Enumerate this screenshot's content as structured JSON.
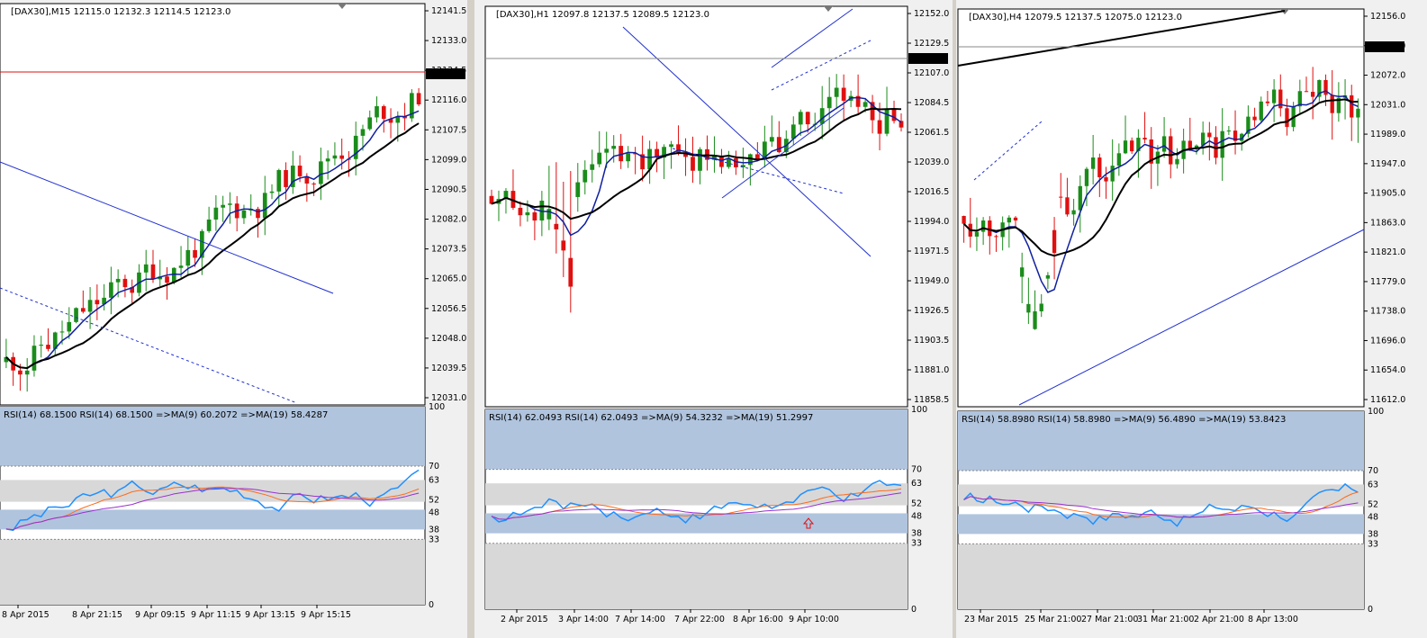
{
  "charts": [
    {
      "info": "[DAX30],M15  12115.0 12132.3 12114.5 12123.0",
      "price_label": "12123.0",
      "y_labels": [
        "12141.5",
        "12133.0",
        "12124.5",
        "12116.0",
        "12107.5",
        "12099.0",
        "12090.5",
        "12082.0",
        "12073.5",
        "12065.0",
        "12056.5",
        "12048.0",
        "12039.5",
        "12031.0"
      ],
      "rsi_info": "RSI(14) 68.1500  RSI(14) 68.1500  =>MA(9) 60.2072  =>MA(19) 58.4287",
      "rsi_levels": [
        "100",
        "70",
        "63",
        "52",
        "48",
        "38",
        "33",
        "0"
      ],
      "x_labels": [
        "8 Apr 2015",
        "8 Apr 21:15",
        "9 Apr 09:15",
        "9 Apr 11:15",
        "9 Apr 13:15",
        "9 Apr 15:15"
      ]
    },
    {
      "info": "[DAX30],H1  12097.8 12137.5 12089.5 12123.0",
      "price_label": "12123.0",
      "y_labels": [
        "12152.0",
        "12129.5",
        "12107.0",
        "12084.5",
        "12061.5",
        "12039.0",
        "12016.5",
        "11994.0",
        "11971.5",
        "11949.0",
        "11926.5",
        "11903.5",
        "11881.0",
        "11858.5"
      ],
      "rsi_info": "RSI(14) 62.0493  RSI(14) 62.0493  =>MA(9) 54.3232  =>MA(19) 51.2997",
      "rsi_levels": [
        "100",
        "70",
        "63",
        "52",
        "48",
        "38",
        "33",
        "0"
      ],
      "x_labels": [
        "2 Apr 2015",
        "3 Apr 14:00",
        "7 Apr 14:00",
        "7 Apr 22:00",
        "8 Apr 16:00",
        "9 Apr 10:00"
      ]
    },
    {
      "info": "[DAX30],H4  12079.5 12137.5 12075.0 12123.0",
      "price_label": "12123.0",
      "y_labels": [
        "12156.0",
        "12114.0",
        "12072.0",
        "12031.0",
        "11989.0",
        "11947.0",
        "11905.0",
        "11863.0",
        "11821.0",
        "11779.0",
        "11738.0",
        "11696.0",
        "11654.0",
        "11612.0"
      ],
      "rsi_info": "RSI(14) 58.8980  RSI(14) 58.8980  =>MA(9) 56.4890  =>MA(19) 53.8423",
      "rsi_levels": [
        "100",
        "70",
        "63",
        "52",
        "48",
        "38",
        "33",
        "0"
      ],
      "x_labels": [
        "23 Mar 2015",
        "25 Mar 21:00",
        "27 Mar 21:00",
        "31 Mar 21:00",
        "2 Apr 21:00",
        "8 Apr 13:00"
      ]
    }
  ],
  "colors": {
    "bull": "#1a8c1a",
    "bear": "#e01010",
    "ma_fast": "#1020a0",
    "ma_slow": "#000000",
    "rsi": "#1e90ff",
    "rsi_ma9": "#ff6a1a",
    "rsi_ma19": "#9a30d0",
    "zone_blue": "#b0c4de",
    "zone_gray": "#d8d8d8"
  }
}
